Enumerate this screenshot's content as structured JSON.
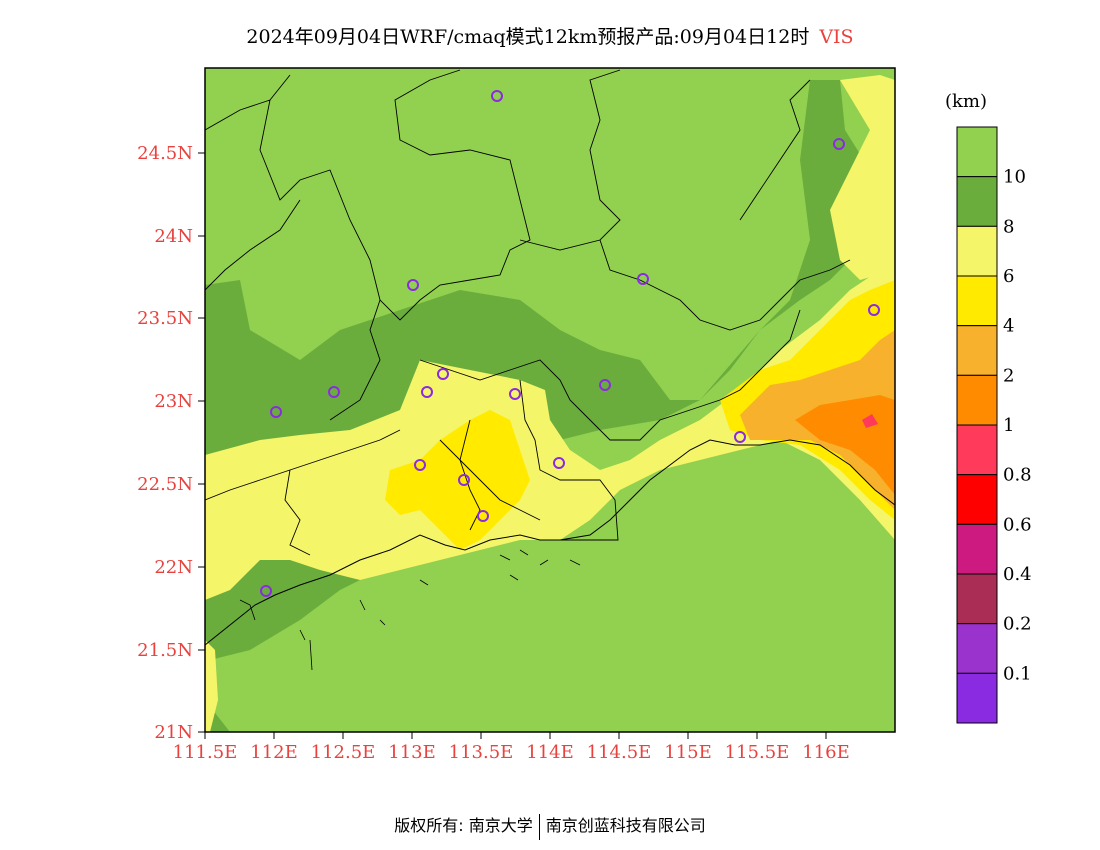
{
  "header": {
    "title": "2024年09月04日WRF/cmaq模式12km预报产品:09月04日12时",
    "variable": "VIS"
  },
  "map": {
    "lat_labels": [
      "24.5N",
      "24N",
      "23.5N",
      "23N",
      "22.5N",
      "22N",
      "21.5N",
      "21N"
    ],
    "lon_labels": [
      "111.5E",
      "112E",
      "112.5E",
      "113E",
      "113.5E",
      "114E",
      "114.5E",
      "115E",
      "115.5E",
      "116E"
    ],
    "colors": {
      "axis_label": "#e8423e",
      "land_high": "#92d050",
      "land_mid": "#6aad3d"
    }
  },
  "legend": {
    "unit": "(km)",
    "levels": [
      "10",
      "8",
      "6",
      "4",
      "2",
      "1",
      "0.8",
      "0.6",
      "0.4",
      "0.2",
      "0.1"
    ],
    "colors": [
      "#92d050",
      "#6aad3d",
      "#f5f56a",
      "#ffea00",
      "#f8b12c",
      "#ff8c00",
      "#ff3a5a",
      "#ff0000",
      "#cc1a80",
      "#aa2d55",
      "#9a32cd",
      "#8a2be2"
    ]
  },
  "footer": {
    "left": "版权所有: 南京大学",
    "right": "南京创蓝科技有限公司"
  }
}
